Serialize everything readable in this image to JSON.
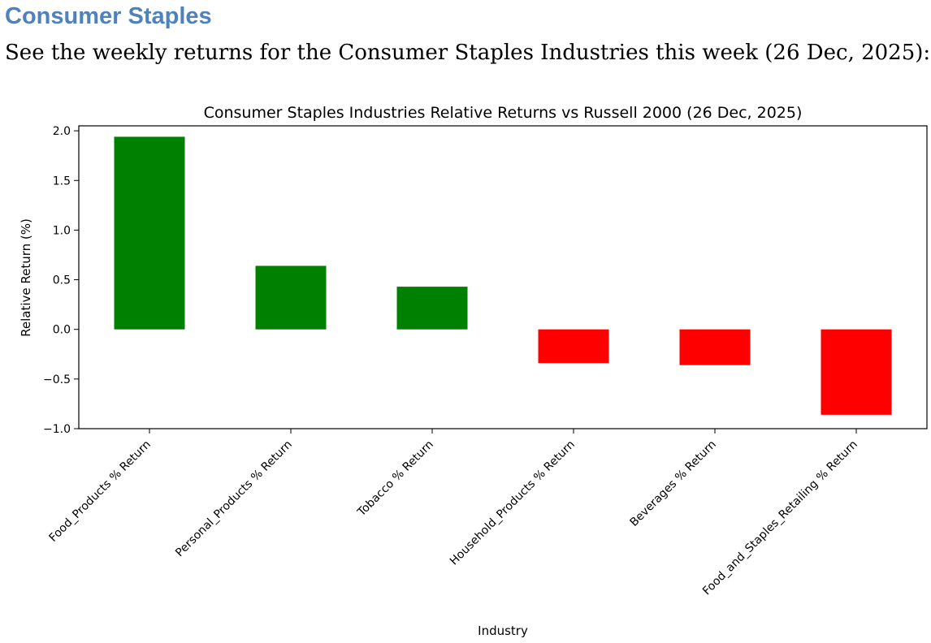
{
  "section": {
    "heading": "Consumer Staples",
    "intro": "See the weekly returns for the Consumer Staples Industries this week (26 Dec, 2025):"
  },
  "chart_data": {
    "type": "bar",
    "title": "Consumer Staples Industries Relative Returns vs Russell 2000 (26 Dec, 2025)",
    "xlabel": "Industry",
    "ylabel": "Relative Return (%)",
    "ylim": [
      -1.0,
      2.05
    ],
    "yticks": [
      -1.0,
      -0.5,
      0.0,
      0.5,
      1.0,
      1.5,
      2.0
    ],
    "ytick_labels": [
      "−1.0",
      "−0.5",
      "0.0",
      "0.5",
      "1.0",
      "1.5",
      "2.0"
    ],
    "categories": [
      "Food_Products % Return",
      "Personal_Products % Return",
      "Tobacco % Return",
      "Household_Products % Return",
      "Beverages % Return",
      "Food_and_Staples_Retailing % Return"
    ],
    "values": [
      1.94,
      0.64,
      0.43,
      -0.34,
      -0.36,
      -0.86
    ],
    "colors": {
      "positive": "#008000",
      "negative": "#ff0000"
    },
    "grid": false,
    "legend": "none"
  }
}
